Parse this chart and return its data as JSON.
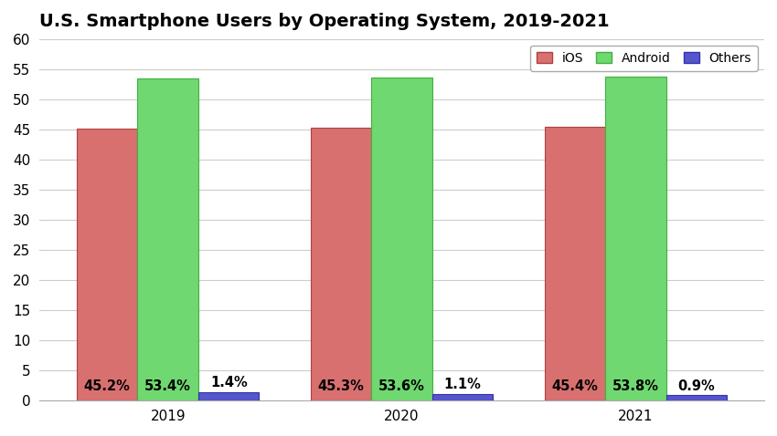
{
  "title": "U.S. Smartphone Users by Operating System, 2019-2021",
  "years": [
    "2019",
    "2020",
    "2021"
  ],
  "series": {
    "iOS": [
      45.2,
      45.3,
      45.4
    ],
    "Android": [
      53.4,
      53.6,
      53.8
    ],
    "Others": [
      1.4,
      1.1,
      0.9
    ]
  },
  "labels": {
    "iOS": [
      "45.2%",
      "45.3%",
      "45.4%"
    ],
    "Android": [
      "53.4%",
      "53.6%",
      "53.8%"
    ],
    "Others": [
      "1.4%",
      "1.1%",
      "0.9%"
    ]
  },
  "colors": {
    "iOS": "#D97070",
    "Android": "#70D870",
    "Others": "#5555CC"
  },
  "edge_colors": {
    "iOS": "#B04040",
    "Android": "#40B040",
    "Others": "#3333AA"
  },
  "ylim": [
    0,
    60
  ],
  "yticks": [
    0,
    5,
    10,
    15,
    20,
    25,
    30,
    35,
    40,
    45,
    50,
    55,
    60
  ],
  "bar_width": 0.26,
  "background_color": "#ffffff",
  "grid_color": "#cccccc",
  "title_fontsize": 14,
  "tick_fontsize": 11,
  "label_fontsize": 10.5,
  "legend_fontsize": 10
}
